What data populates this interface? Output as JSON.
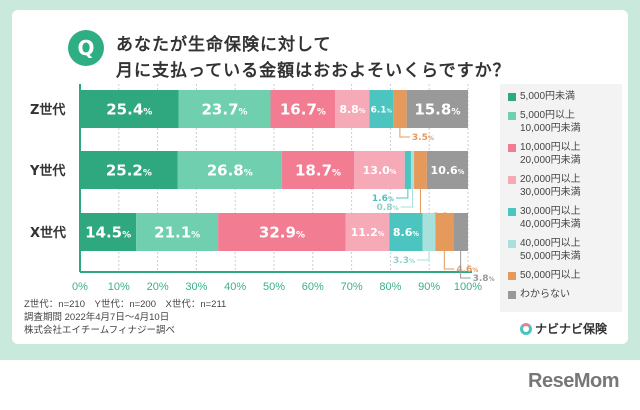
{
  "question": {
    "badge": "Q",
    "line1": "あなたが生命保険に対して",
    "line2": "月に支払っている金額はおおよそいくらですか？"
  },
  "chart_data": {
    "type": "bar",
    "orientation": "horizontal",
    "stacked": true,
    "categories": [
      "Z世代",
      "Y世代",
      "X世代"
    ],
    "xlim": [
      0,
      100
    ],
    "x_ticks": [
      "0%",
      "10%",
      "20%",
      "30%",
      "40%",
      "50%",
      "60%",
      "70%",
      "80%",
      "90%",
      "100%"
    ],
    "grid": true,
    "legend_position": "right",
    "series": [
      {
        "name": "5,000円未満",
        "color": "#2fa77f",
        "values": [
          25.4,
          25.2,
          14.5
        ]
      },
      {
        "name": "5,000円以上\n10,000円未満",
        "color": "#6fcfae",
        "values": [
          23.7,
          26.8,
          21.1
        ]
      },
      {
        "name": "10,000円以上\n20,000円未満",
        "color": "#f27d93",
        "values": [
          16.7,
          18.7,
          32.9
        ]
      },
      {
        "name": "20,000円以上\n30,000円未満",
        "color": "#f6aab8",
        "values": [
          8.8,
          13.0,
          11.2
        ]
      },
      {
        "name": "30,000円以上\n40,000円未満",
        "color": "#4cc4c0",
        "values": [
          6.1,
          1.6,
          8.6
        ]
      },
      {
        "name": "40,000円以上\n50,000円未満",
        "color": "#a8e0dc",
        "values": [
          0,
          0.8,
          3.3
        ]
      },
      {
        "name": "50,000円以上",
        "color": "#e5995a",
        "values": [
          3.5,
          3.3,
          4.6
        ]
      },
      {
        "name": "わからない",
        "color": "#999999",
        "values": [
          15.8,
          10.6,
          3.8
        ]
      }
    ]
  },
  "notes": [
    "Z世代：n=210　Y世代：n=200　X世代：n=211",
    "調査期間 2022年4月7日～4月10日",
    "株式会社エイチームフィナジー調べ"
  ],
  "brand": "ナビナビ保険",
  "watermark": "ReseMom"
}
